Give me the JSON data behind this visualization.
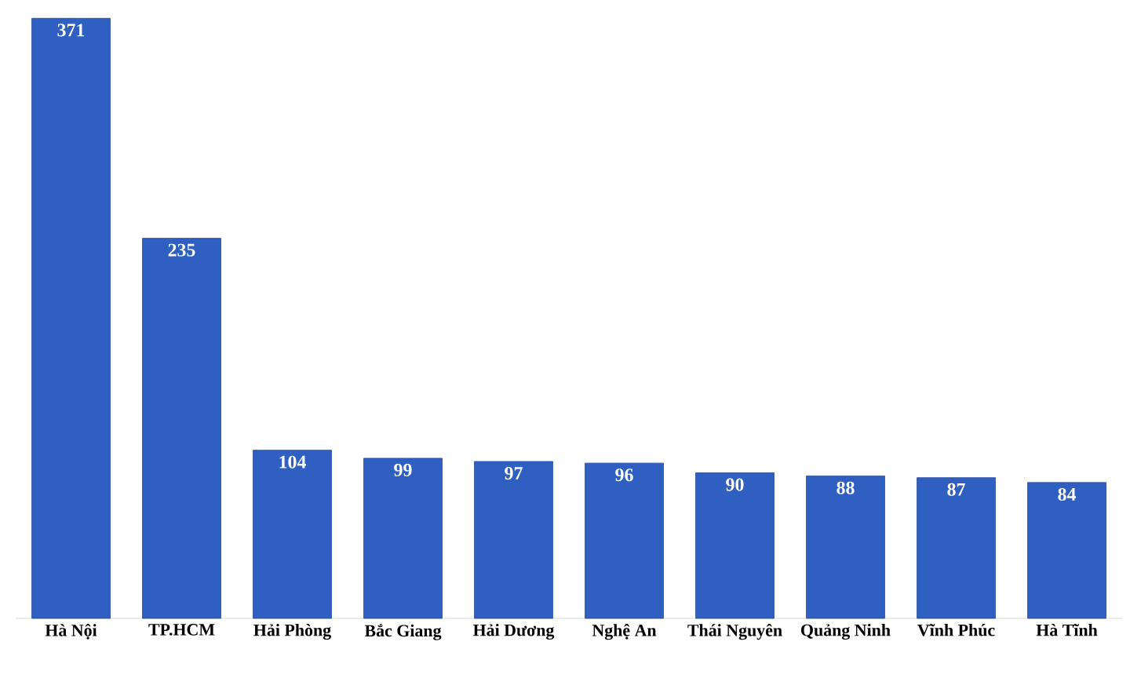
{
  "chart_data": {
    "type": "bar",
    "categories": [
      "Hà Nội",
      "TP.HCM",
      "Hải Phòng",
      "Bắc Giang",
      "Hải Dương",
      "Nghệ An",
      "Thái Nguyên",
      "Quảng Ninh",
      "Vĩnh Phúc",
      "Hà Tĩnh"
    ],
    "values": [
      371,
      235,
      104,
      99,
      97,
      96,
      90,
      88,
      87,
      84
    ],
    "color": "#2f5fc0",
    "data_labels": true
  }
}
